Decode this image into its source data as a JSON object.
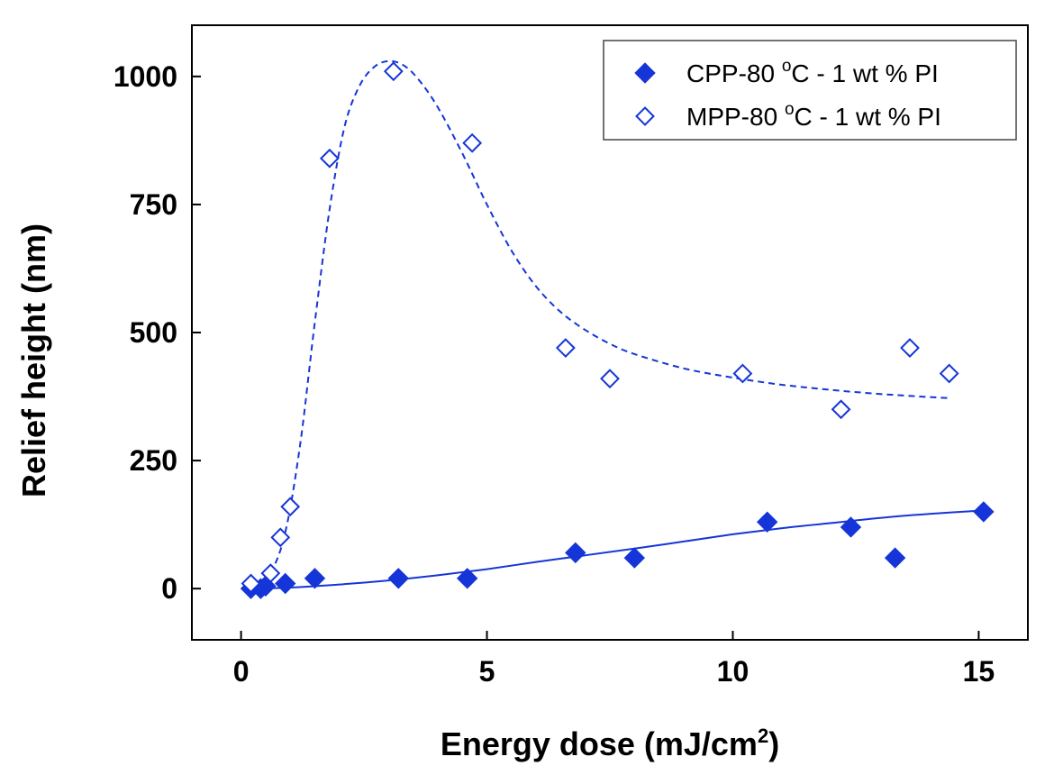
{
  "chart_data": {
    "type": "scatter",
    "xlabel": {
      "main": "Energy dose (mJ/cm",
      "sup": "2",
      "close": ")"
    },
    "ylabel": "Relief height (nm)",
    "xlim": [
      -1,
      16
    ],
    "ylim": [
      -100,
      1100
    ],
    "xticks": [
      0,
      5,
      10,
      15
    ],
    "yticks": [
      0,
      250,
      500,
      750,
      1000
    ],
    "grid": false,
    "legend_position": "top-right",
    "series": [
      {
        "name": "CPP-80 °C - 1 wt % PI",
        "legend": {
          "pre": "CPP-80 ",
          "sup": "o",
          "post": "C - 1 wt % PI"
        },
        "marker": "filled-diamond",
        "fit_line": "solid",
        "color": "#1535d8",
        "points": [
          [
            0.2,
            0
          ],
          [
            0.4,
            0
          ],
          [
            0.5,
            5
          ],
          [
            0.9,
            10
          ],
          [
            1.5,
            20
          ],
          [
            3.2,
            20
          ],
          [
            4.6,
            20
          ],
          [
            6.8,
            70
          ],
          [
            8.0,
            60
          ],
          [
            10.7,
            130
          ],
          [
            12.4,
            120
          ],
          [
            13.3,
            60
          ],
          [
            15.1,
            150
          ]
        ],
        "fit": [
          [
            0.3,
            0
          ],
          [
            1.0,
            2
          ],
          [
            2.0,
            8
          ],
          [
            3.0,
            16
          ],
          [
            4.0,
            26
          ],
          [
            5.0,
            38
          ],
          [
            6.0,
            52
          ],
          [
            7.0,
            65
          ],
          [
            8.0,
            78
          ],
          [
            9.0,
            92
          ],
          [
            10.0,
            106
          ],
          [
            11.0,
            118
          ],
          [
            12.0,
            128
          ],
          [
            13.0,
            138
          ],
          [
            14.0,
            146
          ],
          [
            15.0,
            152
          ]
        ]
      },
      {
        "name": "MPP-80 °C - 1 wt % PI",
        "legend": {
          "pre": "MPP-80 ",
          "sup": "o",
          "post": "C - 1 wt % PI"
        },
        "marker": "open-diamond",
        "fit_line": "dashed",
        "color": "#1535d8",
        "points": [
          [
            0.2,
            10
          ],
          [
            0.6,
            30
          ],
          [
            0.8,
            100
          ],
          [
            1.0,
            160
          ],
          [
            1.8,
            840
          ],
          [
            3.1,
            1010
          ],
          [
            4.7,
            870
          ],
          [
            6.6,
            470
          ],
          [
            7.5,
            410
          ],
          [
            10.2,
            420
          ],
          [
            12.2,
            350
          ],
          [
            13.6,
            470
          ],
          [
            14.4,
            420
          ]
        ],
        "fit": [
          [
            0.3,
            0
          ],
          [
            0.6,
            30
          ],
          [
            0.9,
            110
          ],
          [
            1.2,
            280
          ],
          [
            1.5,
            520
          ],
          [
            1.8,
            740
          ],
          [
            2.1,
            900
          ],
          [
            2.4,
            980
          ],
          [
            2.7,
            1018
          ],
          [
            3.0,
            1030
          ],
          [
            3.3,
            1022
          ],
          [
            3.6,
            995
          ],
          [
            4.0,
            940
          ],
          [
            4.5,
            850
          ],
          [
            5.0,
            750
          ],
          [
            5.5,
            660
          ],
          [
            6.0,
            590
          ],
          [
            6.5,
            540
          ],
          [
            7.0,
            505
          ],
          [
            7.5,
            478
          ],
          [
            8.0,
            458
          ],
          [
            9.0,
            430
          ],
          [
            10.0,
            412
          ],
          [
            11.0,
            398
          ],
          [
            12.0,
            388
          ],
          [
            13.0,
            380
          ],
          [
            14.0,
            374
          ],
          [
            14.4,
            372
          ]
        ]
      }
    ]
  }
}
